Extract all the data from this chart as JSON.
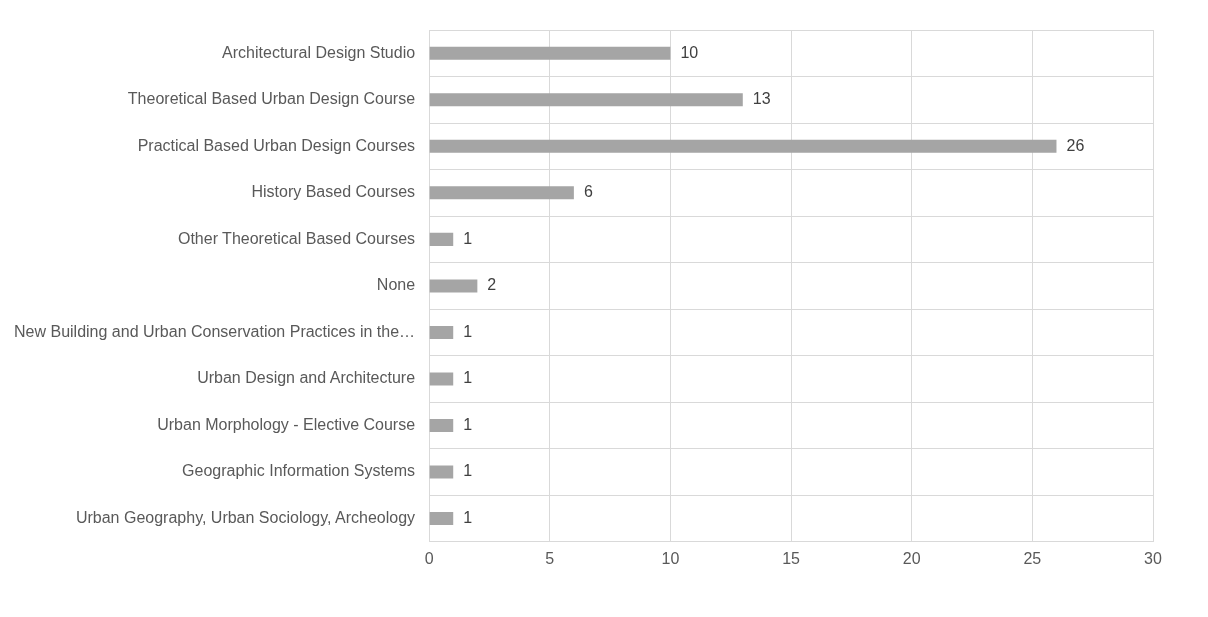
{
  "chart_data": {
    "type": "bar",
    "orientation": "horizontal",
    "categories": [
      "Architectural Design Studio",
      "Theoretical Based Urban Design Course",
      "Practical Based Urban Design Courses",
      "History Based Courses",
      "Other Theoretical Based Courses",
      "None",
      "New Building and Urban Conservation Practices in the…",
      "Urban Design and Architecture",
      "Urban Morphology - Elective Course",
      "Geographic Information Systems",
      "Urban Geography, Urban Sociology, Archeology"
    ],
    "values": [
      10,
      13,
      26,
      6,
      1,
      2,
      1,
      1,
      1,
      1,
      1
    ],
    "color": "#a5a5a5",
    "xlim": [
      0,
      30
    ],
    "xticks": [
      0,
      5,
      10,
      15,
      20,
      25,
      30
    ],
    "grid": true,
    "data_labels": true,
    "legend": false
  }
}
